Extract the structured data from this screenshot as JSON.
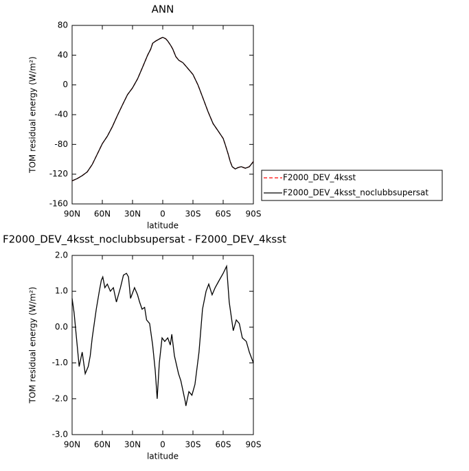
{
  "chart_data": [
    {
      "type": "line",
      "title": "ANN",
      "xlabel": "latitude",
      "ylabel": "TOM residual energy (W/m²)",
      "xlim": [
        90,
        -90
      ],
      "xticks": [
        {
          "value": 90,
          "label": "90N"
        },
        {
          "value": 60,
          "label": "60N"
        },
        {
          "value": 30,
          "label": "30N"
        },
        0,
        {
          "value": -30,
          "label": "30S"
        },
        {
          "value": -60,
          "label": "60S"
        },
        {
          "value": -90,
          "label": "90S"
        }
      ],
      "ylim": [
        -160,
        80
      ],
      "yticks": [
        -160,
        -120,
        -80,
        -40,
        0,
        40,
        80
      ],
      "legend": "right",
      "x": [
        90,
        85,
        80,
        75,
        70,
        65,
        60,
        55,
        50,
        45,
        40,
        35,
        30,
        25,
        20,
        15,
        12,
        10,
        7,
        3,
        0,
        -3,
        -5,
        -8,
        -10,
        -13,
        -16,
        -20,
        -25,
        -30,
        -35,
        -40,
        -45,
        -50,
        -55,
        -60,
        -62,
        -65,
        -67,
        -69,
        -72,
        -75,
        -78,
        -82,
        -86,
        -90
      ],
      "series": [
        {
          "name": "F2000_DEV_4ksst",
          "color": "#ff0000",
          "line_style": "dashed",
          "values": [
            -129,
            -126,
            -122,
            -117,
            -107,
            -93,
            -79,
            -69,
            -56,
            -41,
            -27,
            -13,
            -4,
            8,
            24,
            40,
            48,
            56,
            59,
            62,
            64,
            62,
            59,
            53,
            48,
            38,
            33,
            30,
            22,
            14,
            0,
            -18,
            -36,
            -52,
            -62,
            -72,
            -80,
            -93,
            -103,
            -110,
            -113,
            -111,
            -110,
            -112,
            -110,
            -103
          ]
        },
        {
          "name": "F2000_DEV_4ksst_noclubbsupersat",
          "color": "#000000",
          "line_style": "solid",
          "values": [
            -129,
            -126,
            -122,
            -117,
            -107,
            -93,
            -79,
            -69,
            -56,
            -41,
            -27,
            -13,
            -4,
            8,
            24,
            40,
            48,
            56,
            59,
            62,
            64,
            62,
            59,
            53,
            48,
            38,
            33,
            30,
            22,
            14,
            0,
            -18,
            -36,
            -52,
            -62,
            -72,
            -80,
            -93,
            -103,
            -110,
            -113,
            -111,
            -110,
            -112,
            -110,
            -103
          ]
        }
      ]
    },
    {
      "type": "line",
      "title": "F2000_DEV_4ksst_noclubbsupersat - F2000_DEV_4ksst",
      "xlabel": "latitude",
      "ylabel": "TOM residual energy (W/m²)",
      "xlim": [
        90,
        -90
      ],
      "xticks": [
        {
          "value": 90,
          "label": "90N"
        },
        {
          "value": 60,
          "label": "60N"
        },
        {
          "value": 30,
          "label": "30N"
        },
        0,
        {
          "value": -30,
          "label": "30S"
        },
        {
          "value": -60,
          "label": "60S"
        },
        {
          "value": -90,
          "label": "90S"
        }
      ],
      "ylim": [
        -3,
        2
      ],
      "yticks": [
        {
          "value": -3,
          "label": "-3.0"
        },
        {
          "value": -2,
          "label": "-2.0"
        },
        {
          "value": -1,
          "label": "-1.0"
        },
        {
          "value": 0,
          "label": "0.0"
        },
        {
          "value": 1,
          "label": "1.0"
        },
        {
          "value": 2,
          "label": "2.0"
        }
      ],
      "x": [
        90,
        88,
        83,
        80,
        77,
        74,
        72,
        70,
        66,
        63,
        61,
        59.5,
        57.5,
        55,
        52,
        49,
        46,
        42,
        39,
        36,
        34,
        32,
        28,
        25,
        23,
        20.5,
        18,
        16,
        13,
        10,
        7.5,
        5.5,
        3.4,
        0.7,
        -2,
        -5,
        -7.5,
        -9,
        -11.6,
        -15.7,
        -18,
        -22.5,
        -23,
        -26,
        -29,
        -32,
        -36,
        -39.5,
        -43,
        -45.7,
        -49,
        -52,
        -56,
        -60,
        -63.4,
        -66,
        -70,
        -73,
        -76,
        -79,
        -83,
        -86,
        -90
      ],
      "series": [
        {
          "name": "F2000_DEV_4ksst_noclubbsupersat - F2000_DEV_4ksst",
          "color": "#000000",
          "line_style": "solid",
          "values": [
            0.8,
            0.4,
            -1.1,
            -0.7,
            -1.3,
            -1.1,
            -0.8,
            -0.3,
            0.5,
            1.0,
            1.3,
            1.4,
            1.1,
            1.2,
            1.0,
            1.1,
            0.7,
            1.1,
            1.45,
            1.5,
            1.4,
            0.8,
            1.1,
            0.9,
            0.7,
            0.5,
            0.55,
            0.2,
            0.1,
            -0.5,
            -1.2,
            -2.0,
            -1.0,
            -0.3,
            -0.4,
            -0.3,
            -0.5,
            -0.2,
            -0.8,
            -1.3,
            -1.5,
            -2.1,
            -2.2,
            -1.8,
            -1.9,
            -1.6,
            -0.7,
            0.5,
            1.0,
            1.2,
            0.9,
            1.1,
            1.3,
            1.5,
            1.7,
            0.7,
            -0.1,
            0.2,
            0.1,
            -0.3,
            -0.4,
            -0.7,
            -1.0
          ]
        }
      ]
    }
  ]
}
